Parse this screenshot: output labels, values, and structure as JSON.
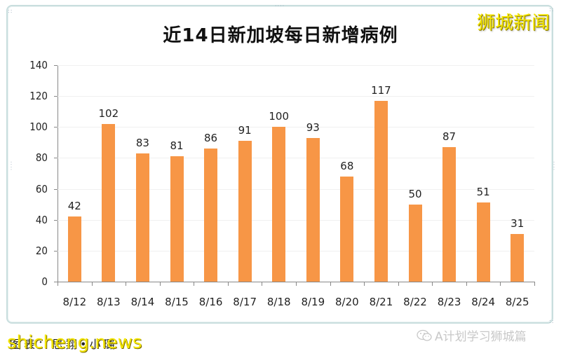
{
  "header": {
    "title": "近14日新加坡每日新增病例",
    "brand": "狮城新闻"
  },
  "footer": {
    "credit": "图表：思翔•小璐",
    "watermark": "shicheng.news",
    "wechat_account": "A计划学习狮城篇",
    "wechat_icon": "wechat-icon"
  },
  "colors": {
    "bar": "#F79646",
    "brand_yellow": "#F4E600",
    "frame_border": "#C9DEDE"
  },
  "chart_data": {
    "type": "bar",
    "title": "近14日新加坡每日新增病例",
    "xlabel": "",
    "ylabel": "",
    "categories": [
      "8/12",
      "8/13",
      "8/14",
      "8/15",
      "8/16",
      "8/17",
      "8/18",
      "8/19",
      "8/20",
      "8/21",
      "8/22",
      "8/23",
      "8/24",
      "8/25"
    ],
    "values": [
      42,
      102,
      83,
      81,
      86,
      91,
      100,
      93,
      68,
      117,
      50,
      87,
      51,
      31
    ],
    "ylim": [
      0,
      140
    ],
    "yticks": [
      0,
      20,
      40,
      60,
      80,
      100,
      120,
      140
    ],
    "grid": true,
    "legend": null,
    "data_labels": true
  }
}
